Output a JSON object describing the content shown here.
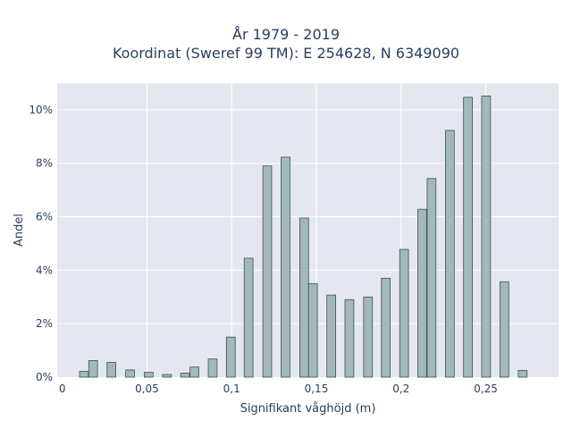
{
  "chart_data": {
    "type": "bar",
    "title": [
      "År 1979 - 2019",
      "Koordinat (Sweref 99 TM): E 254628, N 6349090"
    ],
    "xlabel": "Signifikant våghöjd (m)",
    "ylabel": "Andel",
    "xlim": [
      -0.003,
      0.293
    ],
    "ylim": [
      0,
      11.0
    ],
    "x_ticks": [
      0,
      0.05,
      0.1,
      0.15,
      0.2,
      0.25
    ],
    "x_tick_labels": [
      "0",
      "0,05",
      "0,1",
      "0,15",
      "0,2",
      "0,25"
    ],
    "y_ticks": [
      0,
      2,
      4,
      6,
      8,
      10
    ],
    "y_tick_labels": [
      "0%",
      "2%",
      "4%",
      "6%",
      "8%",
      "10%"
    ],
    "bar_width": 0.0052,
    "grid": true,
    "colors": {
      "bar_fill": "#a3b9b9",
      "bar_stroke": "#3d4f4f",
      "plot_bg": "#e5e7f0",
      "grid": "#ffffff",
      "text": "#2a3f5f"
    },
    "bars": [
      {
        "x": 0.0128,
        "y": 0.22
      },
      {
        "x": 0.0182,
        "y": 0.62
      },
      {
        "x": 0.029,
        "y": 0.55
      },
      {
        "x": 0.04,
        "y": 0.27
      },
      {
        "x": 0.051,
        "y": 0.18
      },
      {
        "x": 0.0618,
        "y": 0.1
      },
      {
        "x": 0.0725,
        "y": 0.15
      },
      {
        "x": 0.078,
        "y": 0.38
      },
      {
        "x": 0.0888,
        "y": 0.68
      },
      {
        "x": 0.0995,
        "y": 1.5
      },
      {
        "x": 0.11,
        "y": 4.45
      },
      {
        "x": 0.121,
        "y": 7.9
      },
      {
        "x": 0.1318,
        "y": 8.23
      },
      {
        "x": 0.1428,
        "y": 5.95
      },
      {
        "x": 0.148,
        "y": 3.5
      },
      {
        "x": 0.1588,
        "y": 3.07
      },
      {
        "x": 0.1695,
        "y": 2.9
      },
      {
        "x": 0.1805,
        "y": 3.0
      },
      {
        "x": 0.191,
        "y": 3.7
      },
      {
        "x": 0.2018,
        "y": 4.78
      },
      {
        "x": 0.2125,
        "y": 6.28
      },
      {
        "x": 0.218,
        "y": 7.43
      },
      {
        "x": 0.2288,
        "y": 9.23
      },
      {
        "x": 0.2395,
        "y": 10.47
      },
      {
        "x": 0.2502,
        "y": 10.52
      },
      {
        "x": 0.261,
        "y": 3.57
      },
      {
        "x": 0.2718,
        "y": 0.25
      }
    ]
  }
}
